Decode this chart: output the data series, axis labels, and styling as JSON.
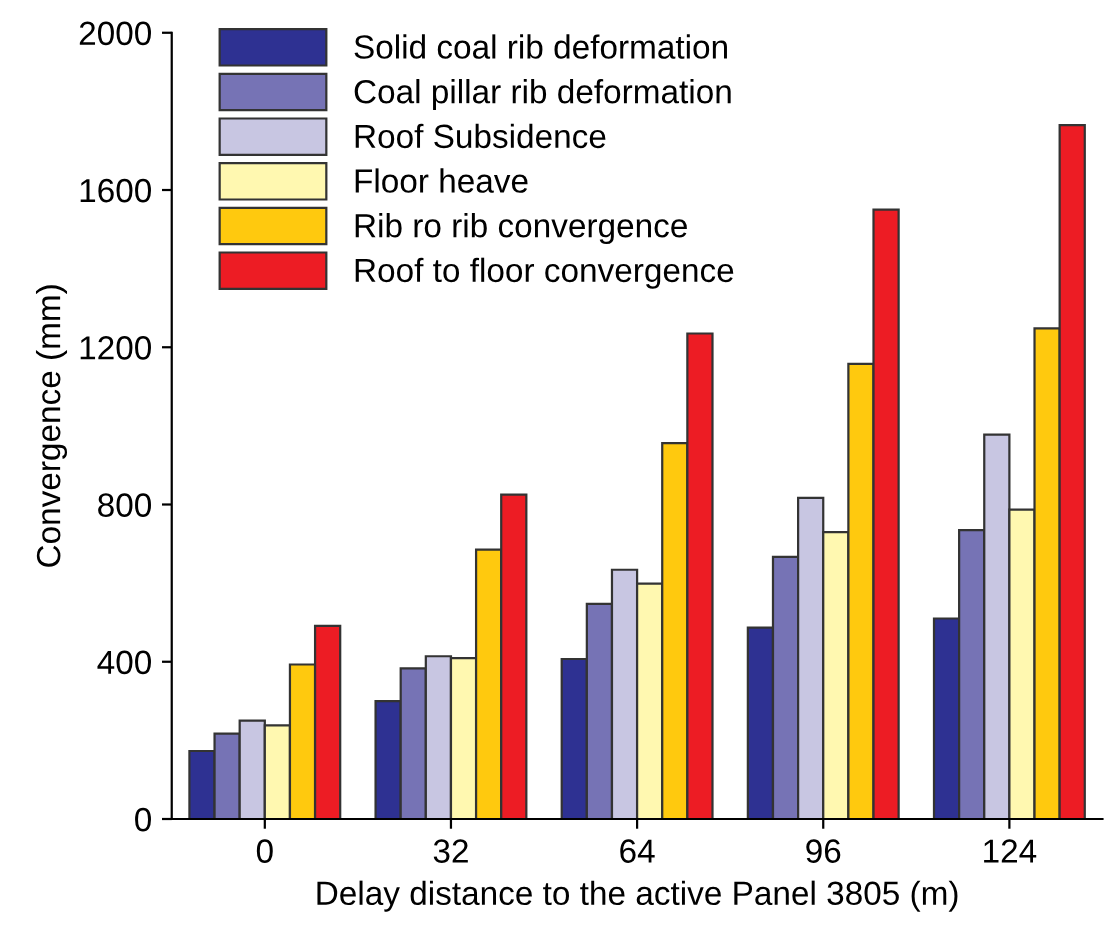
{
  "chart_data": {
    "type": "bar",
    "xlabel": "Delay distance to the active Panel 3805 (m)",
    "ylabel": "Convergence (mm)",
    "categories": [
      "0",
      "32",
      "64",
      "96",
      "124"
    ],
    "series": [
      {
        "name": "Solid coal rib deformation",
        "color": "#2e3192",
        "values": [
          173,
          300,
          407,
          487,
          510
        ]
      },
      {
        "name": "Coal pillar rib deformation",
        "color": "#7673b5",
        "values": [
          217,
          383,
          547,
          667,
          735
        ]
      },
      {
        "name": "Roof Subsidence",
        "color": "#c8c6e2",
        "values": [
          250,
          414,
          634,
          817,
          978
        ]
      },
      {
        "name": "Floor heave",
        "color": "#fff8b0",
        "values": [
          238,
          409,
          599,
          730,
          787
        ]
      },
      {
        "name": "Rib ro rib convergence",
        "color": "#ffc90e",
        "values": [
          393,
          685,
          956,
          1158,
          1248
        ]
      },
      {
        "name": "Roof to floor convergence",
        "color": "#ed1c24",
        "values": [
          491,
          825,
          1235,
          1550,
          1765
        ]
      }
    ],
    "ylim": [
      0,
      2000
    ],
    "yticks": [
      0,
      400,
      800,
      1200,
      1600,
      2000
    ],
    "grid": false,
    "legend": "top left"
  }
}
